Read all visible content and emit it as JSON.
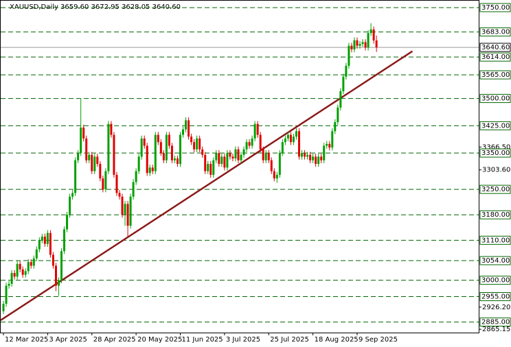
{
  "chart_data": {
    "type": "candlestick",
    "title": "XAUUSD,Daily",
    "ohlc_label": "3659.60 3672.95 3628.05 3640.60",
    "up_color": "#00a000",
    "down_color": "#e00000",
    "level_color": "#006400",
    "trend_color": "#8b1a1a",
    "ylim": [
      2856,
      3769
    ],
    "xlim": [
      -1,
      172
    ],
    "open": [
      2915,
      2935,
      2985,
      2990,
      3020,
      3010,
      3045,
      3030,
      3015,
      3025,
      3050,
      3040,
      3060,
      3085,
      3110,
      3120,
      3100,
      3130,
      3070,
      3040,
      2985,
      3000,
      3080,
      3140,
      3180,
      3230,
      3240,
      3330,
      3350,
      3420,
      3390,
      3330,
      3345,
      3300,
      3340,
      3320,
      3280,
      3250,
      3300,
      3430,
      3400,
      3290,
      3240,
      3230,
      3180,
      3210,
      3150,
      3230,
      3270,
      3300,
      3340,
      3390,
      3370,
      3295,
      3310,
      3300,
      3400,
      3380,
      3350,
      3330,
      3400,
      3370,
      3330,
      3335,
      3320,
      3400,
      3415,
      3440,
      3395,
      3380,
      3360,
      3390,
      3360,
      3345,
      3300,
      3320,
      3290,
      3330,
      3350,
      3320,
      3340,
      3310,
      3350,
      3340,
      3335,
      3360,
      3330,
      3345,
      3360,
      3380,
      3370,
      3390,
      3430,
      3400,
      3360,
      3330,
      3350,
      3330,
      3300,
      3280,
      3290,
      3350,
      3380,
      3390,
      3400,
      3380,
      3395,
      3410,
      3340,
      3350,
      3340,
      3345,
      3330,
      3340,
      3320,
      3340,
      3330,
      3370,
      3375,
      3365,
      3410,
      3435,
      3475,
      3520,
      3560,
      3590,
      3645,
      3635,
      3660,
      3645,
      3650,
      3655,
      3640,
      3680,
      3690,
      3659.6
    ],
    "high": [
      2943,
      2993,
      2998,
      3028,
      3028,
      3053,
      3053,
      3038,
      3033,
      3058,
      3058,
      3068,
      3093,
      3118,
      3128,
      3128,
      3138,
      3138,
      3078,
      3048,
      3008,
      3088,
      3148,
      3188,
      3238,
      3248,
      3338,
      3358,
      3500,
      3428,
      3398,
      3353,
      3353,
      3348,
      3348,
      3328,
      3288,
      3308,
      3438,
      3438,
      3408,
      3298,
      3248,
      3238,
      3218,
      3218,
      3238,
      3278,
      3308,
      3348,
      3398,
      3398,
      3378,
      3318,
      3318,
      3408,
      3408,
      3388,
      3358,
      3408,
      3408,
      3378,
      3343,
      3343,
      3408,
      3423,
      3448,
      3448,
      3403,
      3388,
      3398,
      3398,
      3368,
      3353,
      3328,
      3328,
      3338,
      3358,
      3358,
      3348,
      3348,
      3358,
      3358,
      3348,
      3368,
      3368,
      3353,
      3368,
      3388,
      3388,
      3398,
      3438,
      3438,
      3408,
      3368,
      3358,
      3358,
      3338,
      3308,
      3298,
      3358,
      3388,
      3398,
      3408,
      3408,
      3403,
      3418,
      3418,
      3358,
      3358,
      3353,
      3353,
      3348,
      3348,
      3348,
      3348,
      3378,
      3383,
      3383,
      3418,
      3443,
      3483,
      3528,
      3568,
      3598,
      3653,
      3653,
      3668,
      3668,
      3658,
      3663,
      3663,
      3688,
      3707,
      3698,
      3672.95
    ],
    "low": [
      2907,
      2927,
      2977,
      2982,
      3002,
      3002,
      3022,
      3007,
      3007,
      3017,
      3032,
      3032,
      3052,
      3077,
      3102,
      3092,
      3092,
      3062,
      3032,
      2970,
      2957,
      2992,
      3072,
      3132,
      3172,
      3222,
      3232,
      3322,
      3342,
      3382,
      3322,
      3322,
      3292,
      3292,
      3312,
      3272,
      3242,
      3242,
      3292,
      3392,
      3282,
      3232,
      3222,
      3172,
      3150,
      3120,
      3142,
      3222,
      3262,
      3292,
      3332,
      3362,
      3287,
      3287,
      3292,
      3292,
      3372,
      3342,
      3322,
      3322,
      3362,
      3322,
      3322,
      3312,
      3312,
      3392,
      3407,
      3387,
      3372,
      3352,
      3352,
      3352,
      3337,
      3292,
      3292,
      3282,
      3282,
      3322,
      3312,
      3312,
      3302,
      3302,
      3332,
      3327,
      3327,
      3322,
      3322,
      3337,
      3352,
      3362,
      3362,
      3382,
      3392,
      3352,
      3322,
      3322,
      3322,
      3292,
      3272,
      3268,
      3282,
      3342,
      3372,
      3382,
      3372,
      3372,
      3387,
      3332,
      3332,
      3332,
      3332,
      3322,
      3322,
      3312,
      3312,
      3322,
      3322,
      3362,
      3357,
      3357,
      3402,
      3427,
      3467,
      3512,
      3552,
      3582,
      3627,
      3627,
      3637,
      3637,
      3642,
      3632,
      3632,
      3672,
      3651,
      3628.05
    ],
    "close": [
      2935,
      2985,
      2990,
      3020,
      3010,
      3045,
      3030,
      3015,
      3025,
      3050,
      3040,
      3060,
      3085,
      3110,
      3120,
      3100,
      3130,
      3070,
      3040,
      2985,
      3000,
      3080,
      3140,
      3180,
      3230,
      3240,
      3330,
      3350,
      3420,
      3390,
      3330,
      3345,
      3300,
      3340,
      3320,
      3280,
      3250,
      3300,
      3430,
      3400,
      3290,
      3240,
      3230,
      3180,
      3210,
      3150,
      3230,
      3270,
      3300,
      3340,
      3390,
      3370,
      3295,
      3310,
      3300,
      3400,
      3380,
      3350,
      3330,
      3400,
      3370,
      3330,
      3335,
      3320,
      3400,
      3415,
      3440,
      3395,
      3380,
      3360,
      3390,
      3360,
      3345,
      3300,
      3320,
      3290,
      3330,
      3350,
      3320,
      3340,
      3310,
      3350,
      3340,
      3335,
      3360,
      3330,
      3345,
      3360,
      3380,
      3370,
      3390,
      3430,
      3400,
      3360,
      3330,
      3350,
      3330,
      3300,
      3280,
      3290,
      3350,
      3380,
      3390,
      3400,
      3380,
      3395,
      3410,
      3340,
      3350,
      3340,
      3345,
      3330,
      3340,
      3320,
      3340,
      3330,
      3370,
      3375,
      3365,
      3410,
      3435,
      3475,
      3520,
      3560,
      3590,
      3645,
      3635,
      3660,
      3645,
      3650,
      3655,
      3640,
      3680,
      3690,
      3659.6,
      3640.6
    ],
    "xticks": [
      {
        "value": 0,
        "label": "12 Mar 2025"
      },
      {
        "value": 16,
        "label": "3 Apr 2025"
      },
      {
        "value": 32,
        "label": "28 Apr 2025"
      },
      {
        "value": 48,
        "label": "20 May 2025"
      },
      {
        "value": 64,
        "label": "11 Jun 2025"
      },
      {
        "value": 80,
        "label": "3 Jul 2025"
      },
      {
        "value": 96,
        "label": "25 Jul 2025"
      },
      {
        "value": 112,
        "label": "18 Aug 2025"
      },
      {
        "value": 128,
        "label": "9 Sep 2025"
      }
    ],
    "yticks": [
      {
        "value": 3366.5,
        "label": "3366.50"
      },
      {
        "value": 3303.6,
        "label": "3303.60"
      },
      {
        "value": 2926.2,
        "label": "2926.20"
      },
      {
        "value": 2865.15,
        "label": "2865.15"
      }
    ],
    "levels": [
      {
        "value": 3750,
        "label": "3750.00"
      },
      {
        "value": 3683,
        "label": "3683.00"
      },
      {
        "value": 3614,
        "label": "3614.00"
      },
      {
        "value": 3565,
        "label": "3565.00"
      },
      {
        "value": 3500,
        "label": "3500.00"
      },
      {
        "value": 3425,
        "label": "3425.00"
      },
      {
        "value": 3350,
        "label": "3350.00"
      },
      {
        "value": 3250,
        "label": "3250.00"
      },
      {
        "value": 3180,
        "label": "3180.00"
      },
      {
        "value": 3110,
        "label": "3110.00"
      },
      {
        "value": 3054,
        "label": "3054.00"
      },
      {
        "value": 3000,
        "label": "3000.00"
      },
      {
        "value": 2955,
        "label": "2955.00"
      },
      {
        "value": 2885,
        "label": "2885.00"
      }
    ],
    "last_price": {
      "value": 3640.6,
      "label": "3640.60"
    },
    "trendline": {
      "x": [
        -1,
        148
      ],
      "y": [
        2890,
        3630
      ]
    }
  }
}
